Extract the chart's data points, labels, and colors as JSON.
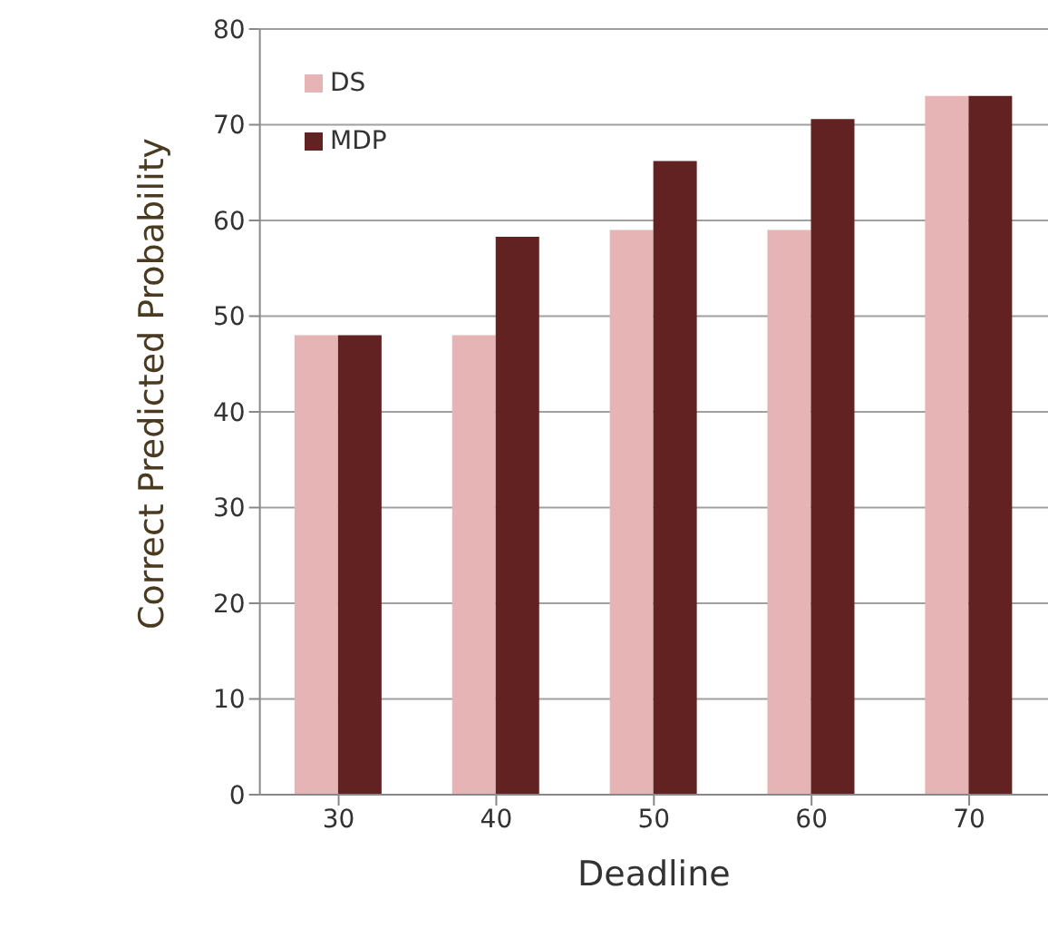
{
  "chart_data": {
    "type": "bar",
    "xlabel": "Deadline",
    "ylabel": "Correct Predicted Probability",
    "categories": [
      "30",
      "40",
      "50",
      "60",
      "70"
    ],
    "series": [
      {
        "name": "DS",
        "color": "#e6b4b4",
        "values": [
          48,
          48,
          59,
          59,
          73
        ]
      },
      {
        "name": "MDP",
        "color": "#622222",
        "values": [
          48,
          58.3,
          66.2,
          70.6,
          73
        ]
      }
    ],
    "ylim": [
      0,
      80
    ],
    "yticks": [
      0,
      10,
      20,
      30,
      40,
      50,
      60,
      70,
      80
    ],
    "grid": "y",
    "legend": "top left"
  }
}
